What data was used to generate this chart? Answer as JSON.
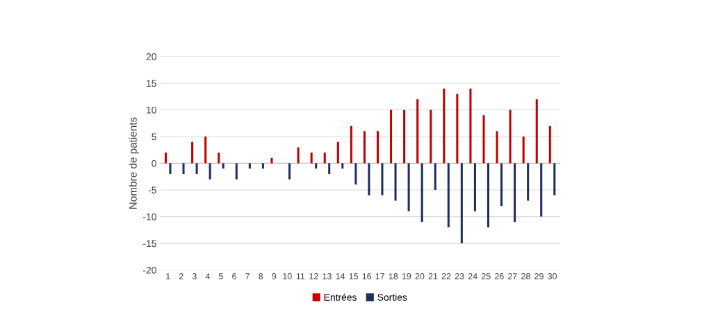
{
  "chart_data": {
    "type": "bar",
    "ylabel": "Nombre de patients",
    "categories": [
      "1",
      "2",
      "3",
      "4",
      "5",
      "6",
      "7",
      "8",
      "9",
      "10",
      "11",
      "12",
      "13",
      "14",
      "15",
      "16",
      "17",
      "18",
      "19",
      "20",
      "21",
      "22",
      "23",
      "24",
      "25",
      "26",
      "27",
      "28",
      "29",
      "30"
    ],
    "series": [
      {
        "name": "Entrées",
        "color": "#c00000",
        "values": [
          2,
          0,
          4,
          5,
          2,
          0,
          0,
          0,
          1,
          0,
          3,
          2,
          2,
          4,
          7,
          6,
          6,
          10,
          10,
          12,
          10,
          14,
          13,
          14,
          9,
          6,
          10,
          5,
          12,
          7
        ]
      },
      {
        "name": "Sorties",
        "color": "#1f2d5f",
        "values": [
          -2,
          -2,
          -2,
          -3,
          -1,
          -3,
          -1,
          -1,
          0,
          -3,
          0,
          -1,
          -2,
          -1,
          -4,
          -6,
          -6,
          -7,
          -9,
          -11,
          -5,
          -12,
          -15,
          -9,
          -12,
          -8,
          -11,
          -7,
          -10,
          -6
        ]
      }
    ],
    "ylim": [
      -20,
      20
    ],
    "yticks": [
      -20,
      -15,
      -10,
      -5,
      0,
      5,
      10,
      15,
      20
    ],
    "grid": "y",
    "legend": "bottom"
  }
}
